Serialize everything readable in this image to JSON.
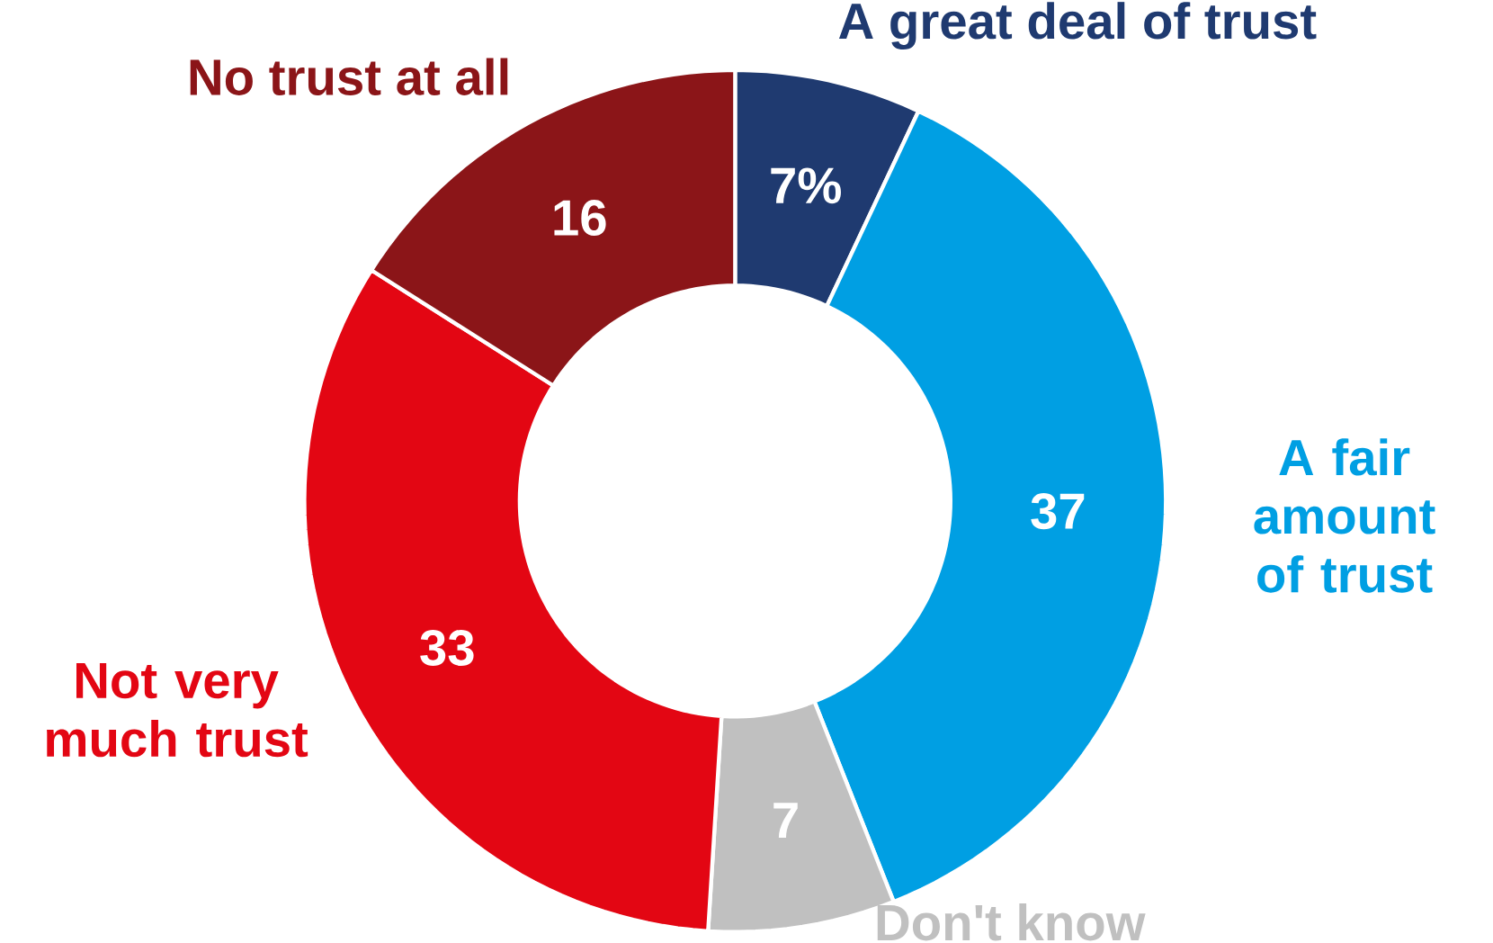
{
  "chart_data": {
    "type": "donut",
    "categories": [
      "A great deal of trust",
      "A fair amount of trust",
      "Don't know",
      "Not very much trust",
      "No trust at all"
    ],
    "values": [
      7,
      37,
      7,
      33,
      16
    ],
    "colors": [
      "#1f3a70",
      "#009fe3",
      "#c0c0c0",
      "#e30613",
      "#8b1518"
    ],
    "value_labels": [
      "7%",
      "37",
      "7",
      "33",
      "16"
    ]
  }
}
